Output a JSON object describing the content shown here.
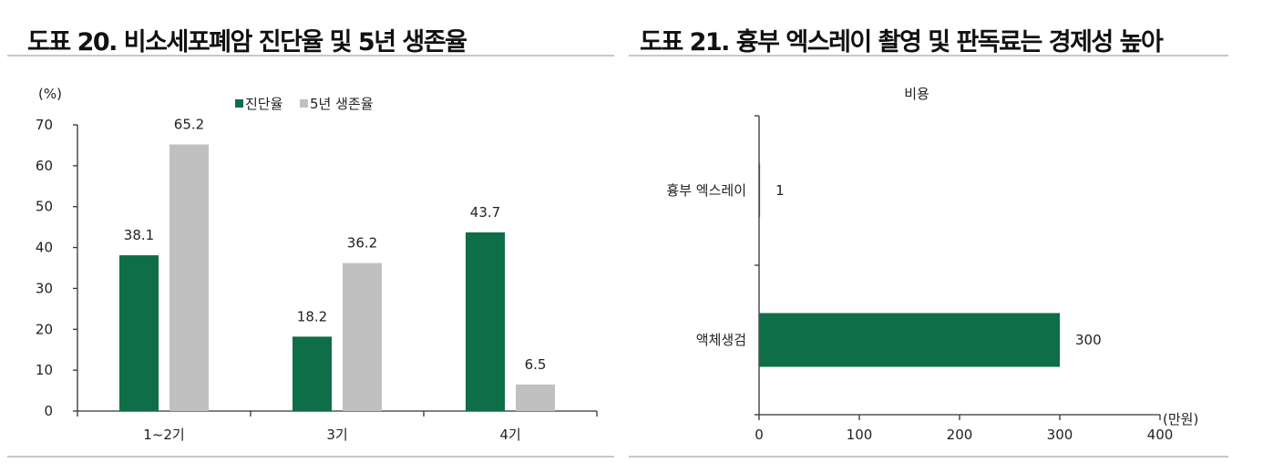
{
  "chart_data": [
    {
      "type": "bar",
      "title": "도표 20. 비소세포폐암 진단율 및 5년 생존율",
      "ylabel": "(%)",
      "categories": [
        "1~2기",
        "3기",
        "4기"
      ],
      "series": [
        {
          "name": "진단율",
          "values": [
            38.1,
            18.2,
            43.7
          ],
          "color": "#0e6e47"
        },
        {
          "name": "5년 생존율",
          "values": [
            65.2,
            36.2,
            6.5
          ],
          "color": "#c0c0c0"
        }
      ],
      "ylim": [
        0,
        70
      ],
      "yticks": [
        0,
        10,
        20,
        30,
        40,
        50,
        60,
        70
      ],
      "value_labels": [
        "38.1",
        "18.2",
        "43.7",
        "65.2",
        "36.2",
        "6.5"
      ],
      "legend_position": "top",
      "grid": false
    },
    {
      "type": "bar",
      "orientation": "horizontal",
      "title": "도표 21. 흉부 엑스레이 촬영 및 판독료는 경제성 높아",
      "legend": "비용",
      "categories": [
        "흉부 엑스레이",
        "액체생검"
      ],
      "values": [
        1,
        300
      ],
      "value_labels": [
        "1",
        "300"
      ],
      "color": "#0e6e47",
      "xlabel": "(만원)",
      "xlim": [
        0,
        400
      ],
      "xticks": [
        0,
        100,
        200,
        300,
        400
      ],
      "grid": false
    }
  ]
}
